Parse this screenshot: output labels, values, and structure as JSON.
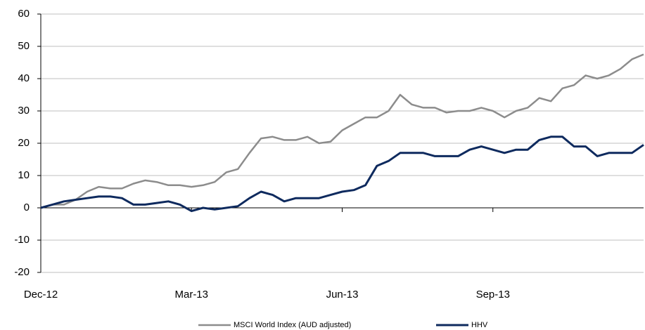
{
  "chart_data": {
    "type": "line",
    "categories": [
      "Dec-12",
      null,
      null,
      null,
      null,
      null,
      null,
      null,
      null,
      null,
      null,
      null,
      null,
      "Mar-13",
      null,
      null,
      null,
      null,
      null,
      null,
      null,
      null,
      null,
      null,
      null,
      null,
      "Jun-13",
      null,
      null,
      null,
      null,
      null,
      null,
      null,
      null,
      null,
      null,
      null,
      null,
      "Sep-13",
      null,
      null,
      null,
      null,
      null,
      null,
      null,
      null,
      null,
      null,
      null,
      null,
      null
    ],
    "series": [
      {
        "name": "MSCI World Index (AUD adjusted)",
        "color": "#8c8c8c",
        "values": [
          0,
          1,
          1,
          2.5,
          5,
          6.5,
          6,
          6,
          7.5,
          8.5,
          8,
          7,
          7,
          6.5,
          7,
          8,
          11,
          12,
          17,
          21.5,
          22,
          21,
          21,
          22,
          20,
          20.5,
          24,
          26,
          28,
          28,
          30,
          35,
          32,
          31,
          31,
          29.5,
          30,
          30,
          31,
          30,
          28,
          30,
          31,
          34,
          33,
          37,
          38,
          41,
          40,
          41,
          43,
          46,
          47.5
        ]
      },
      {
        "name": "HHV",
        "color": "#0e2a5e",
        "values": [
          0,
          1,
          2,
          2.5,
          3,
          3.5,
          3.5,
          3,
          1,
          1,
          1.5,
          2,
          1,
          -1,
          0,
          -0.5,
          0,
          0.5,
          3,
          5,
          4,
          2,
          3,
          3,
          3,
          4,
          5,
          5.5,
          7,
          13,
          14.5,
          17,
          17,
          17,
          16,
          16,
          16,
          18,
          19,
          18,
          17,
          18,
          18,
          21,
          22,
          22,
          19,
          19,
          16,
          17,
          17,
          17,
          19.5
        ]
      }
    ],
    "ylim": [
      -20,
      60
    ],
    "yticks": [
      -20,
      -10,
      0,
      10,
      20,
      30,
      40,
      50,
      60
    ],
    "grid": true
  }
}
